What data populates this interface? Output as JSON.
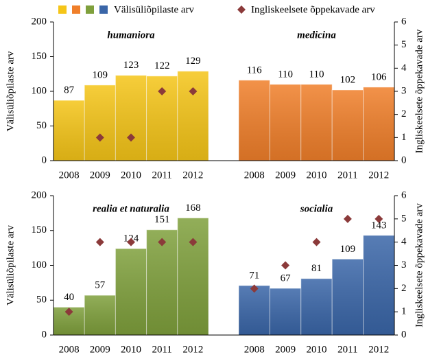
{
  "legend": [
    {
      "name": "Välisüliõpilaste arv",
      "colors": [
        "#f5c518",
        "#f07f2a",
        "#7fa03c",
        "#3a66a8"
      ]
    },
    {
      "name": "Ingliskeelsete õppekavade arv",
      "color": "#8b3a3a"
    }
  ],
  "chart_data": [
    {
      "type": "bar",
      "ylabel": "Välisüliõpilaste arv",
      "y2label": "Ingliskeelsete õppekavade arv",
      "ylim": [
        0,
        200
      ],
      "yticks": [
        0,
        50,
        100,
        150,
        200
      ],
      "y2lim": [
        0,
        6
      ],
      "y2ticks": [
        0,
        1,
        2,
        3,
        4,
        5,
        6
      ],
      "groups": [
        {
          "label": "humaniora",
          "color": "#f5c518",
          "label_color": "#c8a400",
          "categories": [
            "2008",
            "2009",
            "2010",
            "2011",
            "2012"
          ],
          "values": [
            87,
            109,
            123,
            122,
            129
          ],
          "values2": [
            null,
            1,
            1,
            3,
            3
          ]
        },
        {
          "label": "medicina",
          "color": "#f07f2a",
          "label_color": "#c0561a",
          "categories": [
            "2008",
            "2009",
            "2010",
            "2011",
            "2012"
          ],
          "values": [
            116,
            110,
            110,
            102,
            106
          ],
          "values2": [
            null,
            null,
            null,
            null,
            null
          ]
        }
      ]
    },
    {
      "type": "bar",
      "ylabel": "Välisüliõpilaste arv",
      "y2label": "Ingliskeelsete õppekavade arv",
      "ylim": [
        0,
        200
      ],
      "yticks": [
        0,
        50,
        100,
        150,
        200
      ],
      "y2lim": [
        0,
        6
      ],
      "y2ticks": [
        0,
        1,
        2,
        3,
        4,
        5,
        6
      ],
      "groups": [
        {
          "label": "realia et naturalia",
          "color": "#7fa03c",
          "label_color": "#5a7a28",
          "categories": [
            "2008",
            "2009",
            "2010",
            "2011",
            "2012"
          ],
          "values": [
            40,
            57,
            124,
            151,
            168
          ],
          "values2": [
            1,
            4,
            4,
            4,
            4
          ]
        },
        {
          "label": "socialia",
          "color": "#3a66a8",
          "label_color": "#2f5597",
          "categories": [
            "2008",
            "2009",
            "2010",
            "2011",
            "2012"
          ],
          "values": [
            71,
            67,
            81,
            109,
            143
          ],
          "values2": [
            2,
            3,
            4,
            5,
            5
          ]
        }
      ]
    }
  ]
}
